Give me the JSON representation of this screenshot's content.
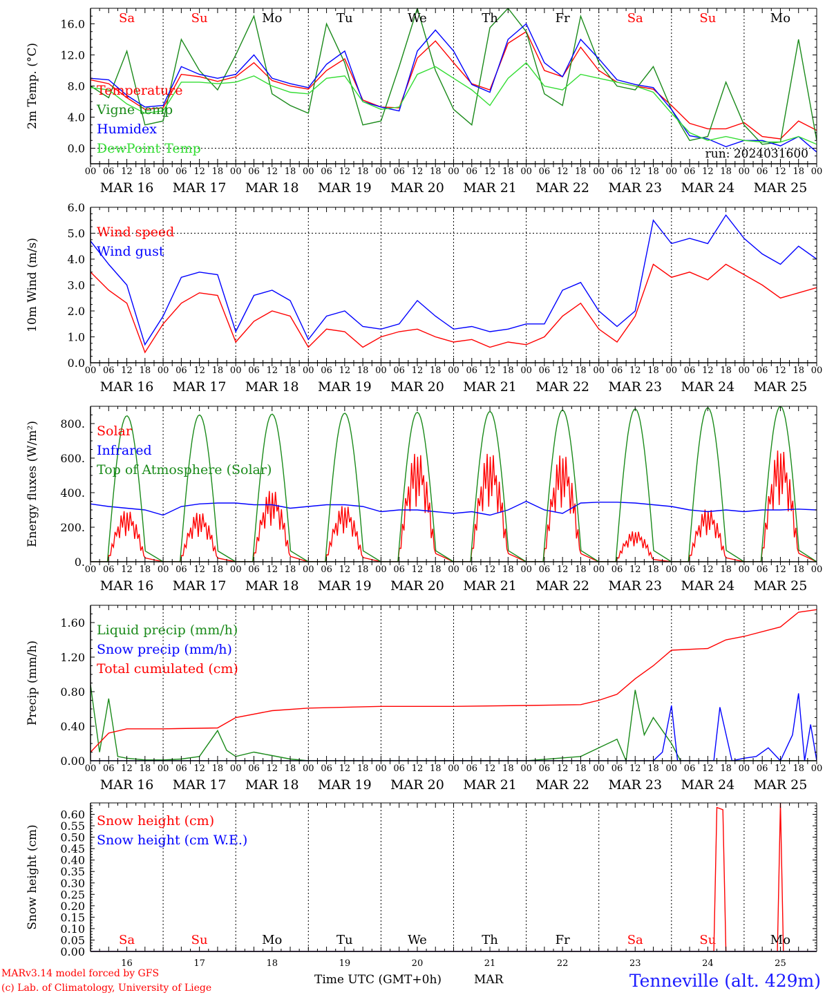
{
  "location": "Tenneville (alt. 429m)",
  "credits": [
    "MARv3.14 model forced by GFS",
    "(c) Lab. of Climatology, University of Liege"
  ],
  "run_label": "run: 2024031600",
  "xlabel": "Time UTC (GMT+0h)",
  "xlabel_month": "MAR",
  "hour_ticks": [
    "00",
    "06",
    "12",
    "18"
  ],
  "end_hour_tick": "00",
  "date_labels": [
    "MAR 16",
    "MAR 17",
    "MAR 18",
    "MAR 19",
    "MAR 20",
    "MAR 21",
    "MAR 22",
    "MAR 23",
    "MAR 24",
    "MAR 25"
  ],
  "day_numbers": [
    "16",
    "17",
    "18",
    "19",
    "20",
    "21",
    "22",
    "23",
    "24",
    "25"
  ],
  "weekdays": [
    "Sa",
    "Su",
    "Mo",
    "Tu",
    "We",
    "Th",
    "Fr",
    "Sa",
    "Su",
    "Mo"
  ],
  "weekend_color": "#ff0000",
  "weekday_color": "#000000",
  "colors": {
    "red": "#ff0000",
    "green": "#1a8a1a",
    "blue": "#0000ff",
    "lightgreen": "#33dd33",
    "credit": "#ff0000",
    "location": "#1a1aff",
    "purple": "#8000a0"
  },
  "chart_data": [
    {
      "type": "line",
      "ylabel": "2m Temp. (°C)",
      "ylim": [
        -2.0,
        18.0
      ],
      "yticks": [
        0.0,
        4.0,
        8.0,
        12.0,
        16.0
      ],
      "ytick_labels": [
        "0.0",
        "4.0",
        "8.0",
        "12.0",
        "16.0"
      ],
      "hline": 0.0,
      "x_unit": "hours since MAR 16 00 UTC",
      "series": [
        {
          "name": "Temperature",
          "color": "red",
          "x": [
            0,
            6,
            12,
            18,
            24,
            30,
            36,
            42,
            48,
            54,
            60,
            66,
            72,
            78,
            84,
            90,
            96,
            102,
            108,
            114,
            120,
            126,
            132,
            138,
            144,
            150,
            156,
            162,
            168,
            174,
            180,
            186,
            192,
            198,
            204,
            210,
            216,
            222,
            228,
            234,
            240
          ],
          "values": [
            8.8,
            8.3,
            6.5,
            5.0,
            5.2,
            9.5,
            9.2,
            8.6,
            9.2,
            11.0,
            8.7,
            8.0,
            7.6,
            10.0,
            11.5,
            6.2,
            5.3,
            5.2,
            11.6,
            13.8,
            11.0,
            8.3,
            7.5,
            13.5,
            15.0,
            10.0,
            9.2,
            13.0,
            10.0,
            8.5,
            8.0,
            7.6,
            5.5,
            3.2,
            2.5,
            2.5,
            3.3,
            1.5,
            1.2,
            3.5,
            2.3
          ]
        },
        {
          "name": "Vigne temp",
          "color": "green",
          "x": [
            0,
            6,
            12,
            18,
            24,
            30,
            36,
            42,
            48,
            54,
            60,
            66,
            72,
            78,
            84,
            90,
            96,
            102,
            108,
            114,
            120,
            126,
            132,
            138,
            144,
            150,
            156,
            162,
            168,
            174,
            180,
            186,
            192,
            198,
            204,
            210,
            216,
            222,
            228,
            234,
            240
          ],
          "values": [
            8.0,
            6.5,
            12.5,
            3.0,
            3.5,
            14.0,
            10.0,
            7.5,
            12.0,
            17.0,
            7.0,
            5.5,
            4.5,
            16.0,
            11.0,
            3.0,
            3.5,
            10.5,
            18.0,
            10.0,
            5.0,
            3.0,
            15.5,
            18.0,
            15.0,
            7.0,
            5.5,
            17.0,
            11.0,
            8.0,
            7.5,
            10.5,
            5.0,
            1.0,
            1.5,
            8.5,
            3.0,
            0.5,
            0.8,
            14.0,
            1.0
          ]
        },
        {
          "name": "Humidex",
          "color": "blue",
          "x": [
            0,
            6,
            12,
            18,
            24,
            30,
            36,
            42,
            48,
            54,
            60,
            66,
            72,
            78,
            84,
            90,
            96,
            102,
            108,
            114,
            120,
            126,
            132,
            138,
            144,
            150,
            156,
            162,
            168,
            174,
            180,
            186,
            192,
            198,
            204,
            210,
            216,
            222,
            228,
            234,
            240
          ],
          "values": [
            9.0,
            8.8,
            6.8,
            5.3,
            5.5,
            10.5,
            9.5,
            9.0,
            9.5,
            12.0,
            9.0,
            8.3,
            7.8,
            10.8,
            12.5,
            6.0,
            5.3,
            4.8,
            12.5,
            15.2,
            12.5,
            8.2,
            7.2,
            14.0,
            16.0,
            11.0,
            9.2,
            14.0,
            11.5,
            8.8,
            8.2,
            7.8,
            5.0,
            1.6,
            1.2,
            0.2,
            1.0,
            1.0,
            0.3,
            1.5,
            -0.5
          ]
        },
        {
          "name": "DewPoint Temp",
          "color": "lightgreen",
          "x": [
            0,
            6,
            12,
            18,
            24,
            30,
            36,
            42,
            48,
            54,
            60,
            66,
            72,
            78,
            84,
            90,
            96,
            102,
            108,
            114,
            120,
            126,
            132,
            138,
            144,
            150,
            156,
            162,
            168,
            174,
            180,
            186,
            192,
            198,
            204,
            210,
            216,
            222,
            228,
            234,
            240
          ],
          "values": [
            7.8,
            7.5,
            5.7,
            4.5,
            4.8,
            8.5,
            8.5,
            8.3,
            8.5,
            9.3,
            8.0,
            7.2,
            7.0,
            9.0,
            9.3,
            6.0,
            5.0,
            5.3,
            9.5,
            10.5,
            9.0,
            7.5,
            5.5,
            9.0,
            11.0,
            8.0,
            7.5,
            9.5,
            9.0,
            8.5,
            8.0,
            7.2,
            4.5,
            2.0,
            1.0,
            1.5,
            1.0,
            0.8,
            0.8,
            1.5,
            0.5
          ]
        }
      ]
    },
    {
      "type": "line",
      "ylabel": "10m Wind (m/s)",
      "ylim": [
        0.0,
        6.0
      ],
      "yticks": [
        0.0,
        1.0,
        2.0,
        3.0,
        4.0,
        5.0,
        6.0
      ],
      "ytick_labels": [
        "0.0",
        "1.0",
        "2.0",
        "3.0",
        "4.0",
        "5.0",
        "6.0"
      ],
      "hline": 5.0,
      "x_unit": "hours since MAR 16 00 UTC",
      "series": [
        {
          "name": "Wind speed",
          "color": "red",
          "x": [
            0,
            6,
            12,
            18,
            24,
            30,
            36,
            42,
            48,
            54,
            60,
            66,
            72,
            78,
            84,
            90,
            96,
            102,
            108,
            114,
            120,
            126,
            132,
            138,
            144,
            150,
            156,
            162,
            168,
            174,
            180,
            186,
            192,
            198,
            204,
            210,
            216,
            222,
            228,
            234,
            240
          ],
          "values": [
            3.5,
            2.8,
            2.3,
            0.4,
            1.5,
            2.3,
            2.7,
            2.6,
            0.8,
            1.6,
            2.0,
            1.8,
            0.6,
            1.3,
            1.2,
            0.6,
            1.0,
            1.2,
            1.3,
            1.0,
            0.8,
            0.9,
            0.6,
            0.8,
            0.7,
            1.0,
            1.8,
            2.3,
            1.3,
            0.8,
            1.8,
            3.8,
            3.3,
            3.5,
            3.2,
            3.8,
            3.4,
            3.0,
            2.5,
            2.7,
            2.9
          ]
        },
        {
          "name": "Wind gust",
          "color": "blue",
          "x": [
            0,
            6,
            12,
            18,
            24,
            30,
            36,
            42,
            48,
            54,
            60,
            66,
            72,
            78,
            84,
            90,
            96,
            102,
            108,
            114,
            120,
            126,
            132,
            138,
            144,
            150,
            156,
            162,
            168,
            174,
            180,
            186,
            192,
            198,
            204,
            210,
            216,
            222,
            228,
            234,
            240
          ],
          "values": [
            4.7,
            3.8,
            3.0,
            0.7,
            1.8,
            3.3,
            3.5,
            3.4,
            1.2,
            2.6,
            2.8,
            2.4,
            0.9,
            1.8,
            2.0,
            1.4,
            1.3,
            1.5,
            2.4,
            1.8,
            1.3,
            1.4,
            1.2,
            1.3,
            1.5,
            1.5,
            2.8,
            3.1,
            2.0,
            1.4,
            2.0,
            5.5,
            4.6,
            4.8,
            4.6,
            5.7,
            4.8,
            4.2,
            3.8,
            4.5,
            4.0
          ]
        }
      ]
    },
    {
      "type": "line",
      "ylabel": "Energy fluxes (W/m²)",
      "ylim": [
        0,
        900
      ],
      "yticks": [
        0,
        200,
        400,
        600,
        800
      ],
      "ytick_labels": [
        "0.",
        "200.",
        "400.",
        "600.",
        "800."
      ],
      "x_unit": "hours since MAR 16 00 UTC",
      "daylight_hours": [
        5.6,
        18.4
      ],
      "series": [
        {
          "name": "Solar",
          "color": "red",
          "daily_peak": [
            300,
            290,
            420,
            330,
            640,
            640,
            630,
            180,
            310,
            660
          ]
        },
        {
          "name": "Infrared",
          "color": "blue",
          "x": [
            0,
            6,
            12,
            18,
            24,
            30,
            36,
            42,
            48,
            54,
            60,
            66,
            72,
            78,
            84,
            90,
            96,
            102,
            108,
            114,
            120,
            126,
            132,
            138,
            144,
            150,
            156,
            162,
            168,
            174,
            180,
            186,
            192,
            198,
            204,
            210,
            216,
            222,
            228,
            234,
            240
          ],
          "values": [
            335,
            320,
            310,
            300,
            270,
            320,
            335,
            340,
            340,
            330,
            330,
            310,
            320,
            330,
            330,
            320,
            290,
            300,
            300,
            290,
            280,
            290,
            270,
            300,
            350,
            300,
            280,
            340,
            345,
            345,
            340,
            330,
            320,
            300,
            290,
            300,
            290,
            300,
            300,
            305,
            300
          ]
        },
        {
          "name": "Top of Atmosphere (Solar)",
          "color": "green",
          "daily_peak": [
            845,
            850,
            855,
            860,
            865,
            870,
            878,
            885,
            892,
            900
          ]
        }
      ]
    },
    {
      "type": "line",
      "ylabel": "Precip (mm/h)",
      "ylim": [
        0.0,
        1.8
      ],
      "yticks": [
        0.0,
        0.4,
        0.8,
        1.2,
        1.6
      ],
      "ytick_labels": [
        "0.00",
        "0.40",
        "0.80",
        "1.20",
        "1.60"
      ],
      "x_unit": "hours since MAR 16 00 UTC",
      "series": [
        {
          "name": "Liquid precip (mm/h)",
          "color": "green",
          "x": [
            0,
            3,
            6,
            9,
            12,
            18,
            24,
            30,
            36,
            42,
            45,
            48,
            54,
            60,
            66,
            72,
            96,
            144,
            162,
            168,
            174,
            177,
            180,
            183,
            186,
            189,
            192,
            195,
            198,
            204,
            240
          ],
          "values": [
            0.88,
            0.1,
            0.72,
            0.05,
            0.03,
            0.01,
            0.01,
            0.02,
            0.05,
            0.35,
            0.12,
            0.05,
            0.1,
            0.06,
            0.02,
            0.0,
            0.0,
            0.0,
            0.05,
            0.15,
            0.25,
            0.0,
            0.82,
            0.3,
            0.5,
            0.35,
            0.2,
            0.0,
            0.0,
            0.0,
            0.0
          ]
        },
        {
          "name": "Snow precip (mm/h)",
          "color": "blue",
          "x": [
            0,
            186,
            189,
            192,
            194,
            200,
            206,
            208,
            212,
            216,
            220,
            224,
            228,
            232,
            234,
            236,
            238,
            240
          ],
          "values": [
            0.0,
            0.0,
            0.1,
            0.64,
            0.0,
            0.0,
            0.0,
            0.62,
            0.0,
            0.03,
            0.05,
            0.15,
            0.0,
            0.3,
            0.78,
            0.0,
            0.42,
            0.0
          ]
        },
        {
          "name": "Total cumulated (cm)",
          "color": "red",
          "x": [
            0,
            6,
            12,
            24,
            42,
            48,
            60,
            72,
            96,
            120,
            144,
            162,
            168,
            174,
            180,
            186,
            192,
            204,
            210,
            216,
            228,
            234,
            240
          ],
          "values": [
            0.1,
            0.32,
            0.37,
            0.37,
            0.38,
            0.5,
            0.58,
            0.61,
            0.63,
            0.63,
            0.64,
            0.65,
            0.7,
            0.77,
            0.95,
            1.1,
            1.28,
            1.3,
            1.4,
            1.44,
            1.55,
            1.72,
            1.75
          ]
        }
      ]
    },
    {
      "type": "line",
      "ylabel": "Snow height (cm)",
      "ylim": [
        0.0,
        0.65
      ],
      "yticks": [
        0.0,
        0.05,
        0.1,
        0.15,
        0.2,
        0.25,
        0.3,
        0.35,
        0.4,
        0.45,
        0.5,
        0.55,
        0.6
      ],
      "ytick_labels": [
        "0.00",
        "0.05",
        "0.10",
        "0.15",
        "0.20",
        "0.25",
        "0.30",
        "0.35",
        "0.40",
        "0.45",
        "0.50",
        "0.55",
        "0.60"
      ],
      "x_unit": "hours since MAR 16 00 UTC",
      "series": [
        {
          "name": "Snow height (cm)",
          "color": "red",
          "x": [
            0,
            206,
            207,
            209,
            210,
            227,
            228,
            229,
            240
          ],
          "values": [
            0.0,
            0.0,
            0.63,
            0.62,
            0.0,
            0.0,
            0.65,
            0.0,
            0.0
          ]
        },
        {
          "name": "Snow height (cm W.E.)",
          "color": "blue",
          "x": [
            0,
            240
          ],
          "values": [
            0.0,
            0.0
          ]
        }
      ]
    }
  ]
}
